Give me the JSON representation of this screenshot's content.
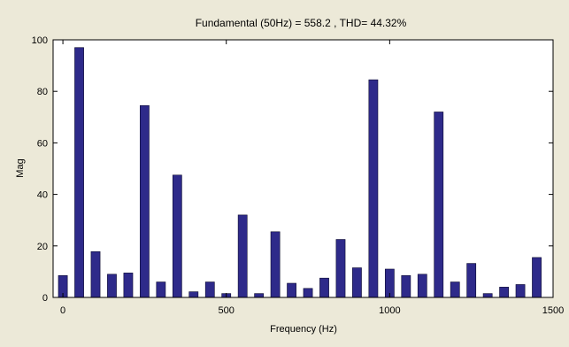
{
  "chart_data": {
    "type": "bar",
    "title": "Fundamental (50Hz) = 558.2 , THD= 44.32%",
    "xlabel": "Frequency (Hz)",
    "ylabel": "Mag",
    "xlim": [
      -30,
      1500
    ],
    "ylim": [
      0,
      100
    ],
    "xticks": [
      0,
      500,
      1000,
      1500
    ],
    "yticks": [
      0,
      20,
      40,
      60,
      80,
      100
    ],
    "grid": false,
    "colors": {
      "bar": "#2e2a8a",
      "bar_edge": "#0b0930",
      "axes_bg": "#ffffff",
      "figure_bg": "#ece9d8"
    },
    "x": [
      0,
      50,
      100,
      150,
      200,
      250,
      300,
      350,
      400,
      450,
      500,
      550,
      600,
      650,
      700,
      750,
      800,
      850,
      900,
      950,
      1000,
      1050,
      1100,
      1150,
      1200,
      1250,
      1300,
      1350,
      1400,
      1450
    ],
    "values": [
      8.5,
      97,
      17.8,
      9,
      9.5,
      74.5,
      6,
      47.5,
      2.2,
      6,
      1.5,
      32,
      1.5,
      25.5,
      5.5,
      3.5,
      7.5,
      22.5,
      11.5,
      84.5,
      11,
      8.5,
      9,
      72,
      6,
      13.2,
      1.5,
      4,
      5,
      15.5
    ]
  }
}
